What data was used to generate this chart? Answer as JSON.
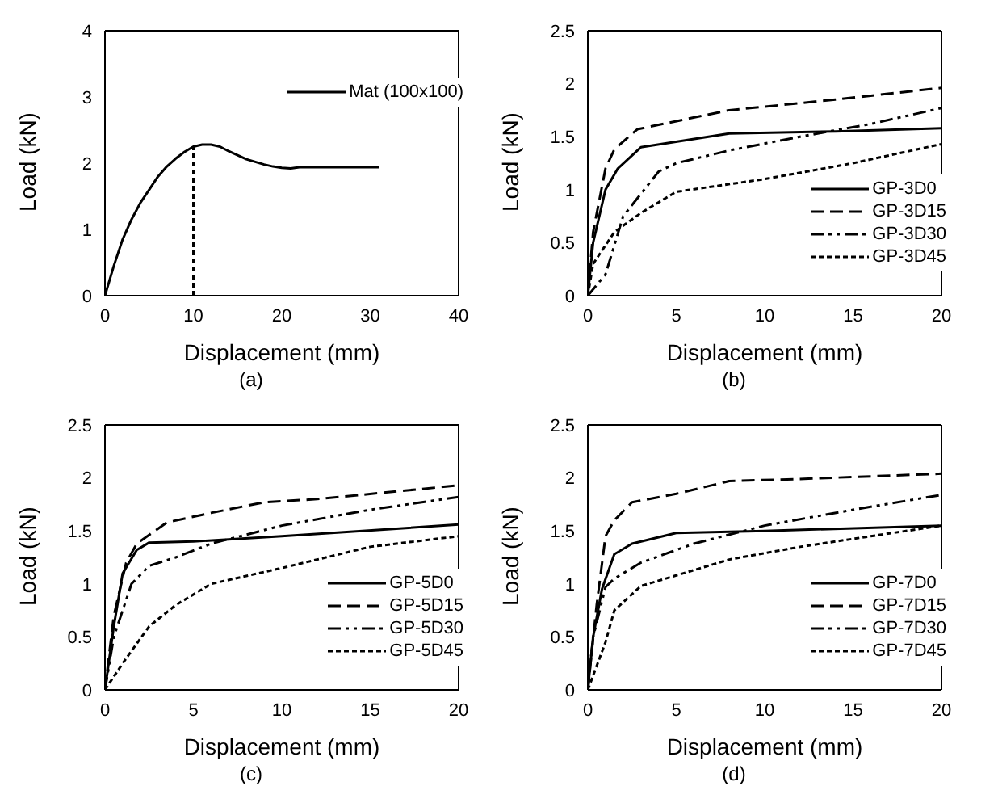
{
  "chart_data": [
    {
      "type": "line",
      "title": "(a)",
      "xlabel": "Displacement (mm)",
      "ylabel": "Load (kN)",
      "xlim": [
        0,
        40
      ],
      "xticks": [
        0,
        10,
        20,
        30,
        40
      ],
      "ylim": [
        0,
        4
      ],
      "yticks": [
        0,
        1,
        2,
        3,
        4
      ],
      "legend": "top right",
      "marker": "none",
      "series": [
        {
          "name": "Mat (100x100)",
          "color": "#000000",
          "line_style": "solid",
          "x": [
            0,
            1,
            2,
            3,
            4,
            5,
            6,
            7,
            8,
            9,
            10,
            11,
            12,
            13,
            14,
            15,
            16,
            17,
            18,
            19,
            20,
            21,
            22,
            25,
            31
          ],
          "values": [
            0,
            0.45,
            0.85,
            1.15,
            1.4,
            1.6,
            1.8,
            1.95,
            2.07,
            2.17,
            2.25,
            2.28,
            2.28,
            2.25,
            2.18,
            2.12,
            2.06,
            2.02,
            1.98,
            1.95,
            1.93,
            1.92,
            1.94,
            1.94,
            1.94
          ]
        },
        {
          "color": "#000000",
          "line_style": "dotted",
          "x": [
            10,
            10
          ],
          "values": [
            0,
            2.25
          ]
        }
      ]
    },
    {
      "type": "line",
      "title": "(b)",
      "xlabel": "Displacement (mm)",
      "ylabel": "Load (kN)",
      "xlim": [
        0,
        20
      ],
      "xticks": [
        0,
        5,
        10,
        15,
        20
      ],
      "ylim": [
        0,
        2.5
      ],
      "yticks": [
        0,
        0.5,
        1,
        1.5,
        2,
        2.5
      ],
      "legend": "bottom right",
      "marker": "none",
      "series": [
        {
          "name": "GP-3D0",
          "color": "#000000",
          "line_style": "solid",
          "x": [
            0,
            0.3,
            1,
            1.7,
            3,
            8,
            14,
            20
          ],
          "values": [
            0,
            0.5,
            1.0,
            1.2,
            1.4,
            1.53,
            1.55,
            1.58
          ]
        },
        {
          "name": "GP-3D15",
          "color": "#000000",
          "line_style": "dashed",
          "x": [
            0,
            0.3,
            1,
            1.5,
            2.8,
            8,
            14,
            20
          ],
          "values": [
            0,
            0.6,
            1.2,
            1.38,
            1.57,
            1.75,
            1.85,
            1.96
          ]
        },
        {
          "name": "GP-3D30",
          "color": "#000000",
          "line_style": "dashdot",
          "x": [
            0,
            1,
            2,
            4,
            5,
            8,
            12,
            16,
            20
          ],
          "values": [
            0,
            0.2,
            0.75,
            1.17,
            1.25,
            1.37,
            1.5,
            1.62,
            1.77
          ]
        },
        {
          "name": "GP-3D45",
          "color": "#000000",
          "line_style": "dotted",
          "x": [
            0,
            0.3,
            1.5,
            3,
            5,
            10,
            15,
            20
          ],
          "values": [
            0,
            0.3,
            0.6,
            0.78,
            0.98,
            1.1,
            1.25,
            1.43
          ]
        }
      ]
    },
    {
      "type": "line",
      "title": "(c)",
      "xlabel": "Displacement (mm)",
      "ylabel": "Load (kN)",
      "xlim": [
        0,
        20
      ],
      "xticks": [
        0,
        5,
        10,
        15,
        20
      ],
      "ylim": [
        0,
        2.5
      ],
      "yticks": [
        0,
        0.5,
        1,
        1.5,
        2,
        2.5
      ],
      "legend": "bottom right",
      "marker": "none",
      "series": [
        {
          "name": "GP-5D0",
          "color": "#000000",
          "line_style": "solid",
          "x": [
            0,
            0.5,
            1,
            1.8,
            2.5,
            5,
            10,
            20
          ],
          "values": [
            0,
            0.6,
            1.1,
            1.32,
            1.39,
            1.4,
            1.45,
            1.56
          ]
        },
        {
          "name": "GP-5D15",
          "color": "#000000",
          "line_style": "dashed",
          "x": [
            0,
            0.5,
            1.2,
            1.8,
            3.5,
            6,
            9,
            12,
            20
          ],
          "values": [
            0,
            0.7,
            1.2,
            1.38,
            1.58,
            1.67,
            1.77,
            1.8,
            1.93
          ]
        },
        {
          "name": "GP-5D30",
          "color": "#000000",
          "line_style": "dashdot",
          "x": [
            0,
            0.5,
            1.5,
            2.5,
            4,
            6,
            10,
            15,
            20
          ],
          "values": [
            0,
            0.5,
            1.0,
            1.17,
            1.25,
            1.38,
            1.55,
            1.7,
            1.82
          ]
        },
        {
          "name": "GP-5D45",
          "color": "#000000",
          "line_style": "dotted",
          "x": [
            0,
            1,
            2.5,
            4,
            6,
            10,
            15,
            20
          ],
          "values": [
            0,
            0.25,
            0.6,
            0.8,
            1.0,
            1.15,
            1.35,
            1.45
          ]
        }
      ]
    },
    {
      "type": "line",
      "title": "(d)",
      "xlabel": "Displacement (mm)",
      "ylabel": "Load (kN)",
      "xlim": [
        0,
        20
      ],
      "xticks": [
        0,
        5,
        10,
        15,
        20
      ],
      "ylim": [
        0,
        2.5
      ],
      "yticks": [
        0,
        0.5,
        1,
        1.5,
        2,
        2.5
      ],
      "legend": "bottom right",
      "marker": "none",
      "series": [
        {
          "name": "GP-7D0",
          "color": "#000000",
          "line_style": "solid",
          "x": [
            0,
            0.3,
            0.8,
            1.5,
            2.5,
            5,
            10,
            20
          ],
          "values": [
            0,
            0.5,
            0.95,
            1.28,
            1.38,
            1.48,
            1.5,
            1.55
          ]
        },
        {
          "name": "GP-7D15",
          "color": "#000000",
          "line_style": "dashed",
          "x": [
            0,
            0.5,
            1,
            1.5,
            2.5,
            5,
            8,
            12,
            20
          ],
          "values": [
            0,
            0.8,
            1.45,
            1.6,
            1.77,
            1.85,
            1.97,
            1.99,
            2.04
          ]
        },
        {
          "name": "GP-7D30",
          "color": "#000000",
          "line_style": "dashdot",
          "x": [
            0,
            0.3,
            1,
            1.5,
            3,
            6,
            10,
            15,
            20
          ],
          "values": [
            0,
            0.5,
            0.97,
            1.05,
            1.2,
            1.38,
            1.55,
            1.7,
            1.84
          ]
        },
        {
          "name": "GP-7D45",
          "color": "#000000",
          "line_style": "dotted",
          "x": [
            0,
            1,
            1.5,
            3,
            5,
            8,
            12,
            16,
            20
          ],
          "values": [
            0,
            0.45,
            0.75,
            0.98,
            1.08,
            1.23,
            1.35,
            1.45,
            1.55
          ]
        }
      ]
    }
  ]
}
